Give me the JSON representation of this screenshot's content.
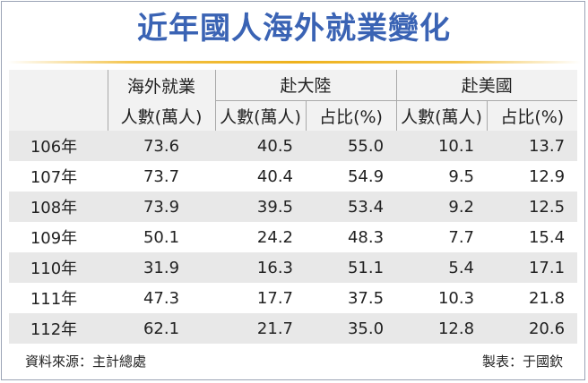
{
  "title": "近年國人海外就業變化",
  "table": {
    "header": {
      "overseas_line1": "海外就業",
      "overseas_line2": "人數(萬人)",
      "group_china": "赴大陸",
      "group_usa": "赴美國",
      "col_count": "人數(萬人)",
      "col_share": "占比(%)"
    }
  },
  "chart_data": {
    "type": "table",
    "title": "近年國人海外就業變化",
    "columns": [
      "海外就業人數(萬人)",
      "赴大陸 人數(萬人)",
      "赴大陸 占比(%)",
      "赴美國 人數(萬人)",
      "赴美國 占比(%)"
    ],
    "rows": [
      {
        "year": "106年",
        "overseas": "73.6",
        "china_count": "40.5",
        "china_share": "55.0",
        "usa_count": "10.1",
        "usa_share": "13.7"
      },
      {
        "year": "107年",
        "overseas": "73.7",
        "china_count": "40.4",
        "china_share": "54.9",
        "usa_count": "9.5",
        "usa_share": "12.9"
      },
      {
        "year": "108年",
        "overseas": "73.9",
        "china_count": "39.5",
        "china_share": "53.4",
        "usa_count": "9.2",
        "usa_share": "12.5"
      },
      {
        "year": "109年",
        "overseas": "50.1",
        "china_count": "24.2",
        "china_share": "48.3",
        "usa_count": "7.7",
        "usa_share": "15.4"
      },
      {
        "year": "110年",
        "overseas": "31.9",
        "china_count": "16.3",
        "china_share": "51.1",
        "usa_count": "5.4",
        "usa_share": "17.1"
      },
      {
        "year": "111年",
        "overseas": "47.3",
        "china_count": "17.7",
        "china_share": "37.5",
        "usa_count": "10.3",
        "usa_share": "21.8"
      },
      {
        "year": "112年",
        "overseas": "62.1",
        "china_count": "21.7",
        "china_share": "35.0",
        "usa_count": "12.8",
        "usa_share": "20.6"
      }
    ]
  },
  "footer": {
    "source": "資料來源：主計總處",
    "maker": "製表：于國欽"
  }
}
